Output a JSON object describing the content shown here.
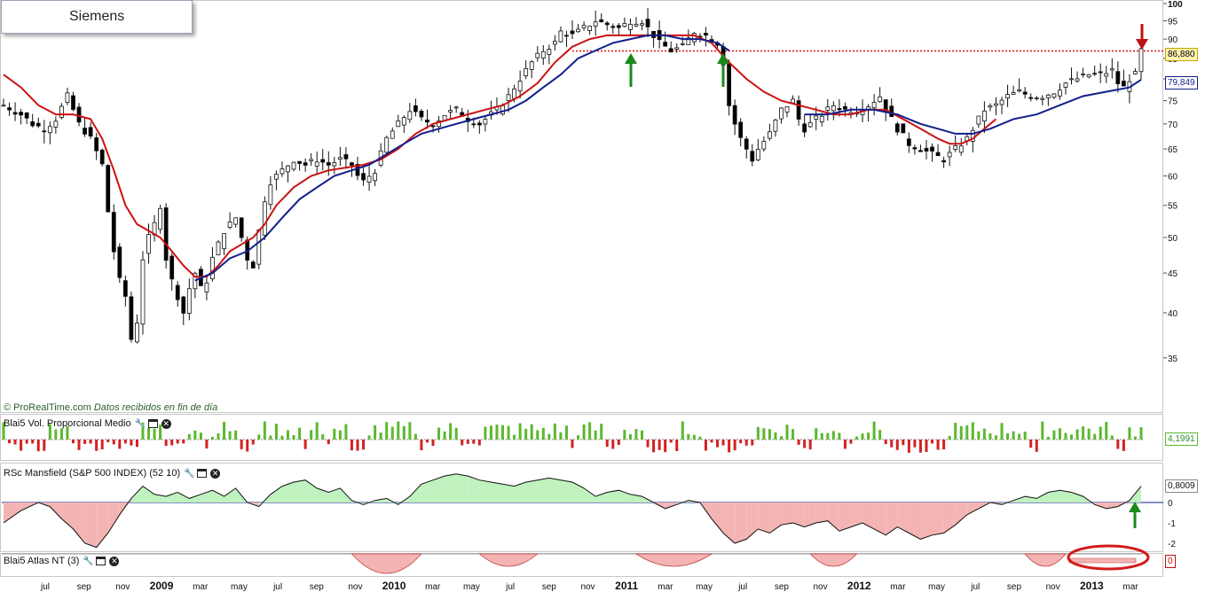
{
  "title": "Siemens",
  "credit": {
    "brand": "© ProRealTime.com",
    "note": "Datos recibidos en fin de día"
  },
  "colors": {
    "up": "#ffffff",
    "down": "#000000",
    "ma_short": "#cc1111",
    "ma_long": "#111e8c",
    "resistance": "#dd1111",
    "vol_up": "#5cb82e",
    "vol_down": "#d22222",
    "rsc_pos": "#bff2bf",
    "rsc_neg": "#f4b4b4",
    "arrow_up": "#1a8a1a",
    "arrow_down": "#c01010"
  },
  "indicators": {
    "vol_label": "Blai5 Vol. Proporcional Medio",
    "vol_value": "4,1991",
    "rsc_label": "RSc Mansfield (S&P 500 INDEX) (52 10)",
    "rsc_value": "0,8009",
    "rsc_ticks": [
      "0",
      "-1",
      "-2"
    ],
    "atlas_label": "Blai5 Atlas NT (3)",
    "atlas_value": "0",
    "icons": [
      "wrench-icon",
      "window-icon",
      "close-icon"
    ]
  },
  "price_tags": {
    "last": "86,880",
    "ma": "79,849"
  },
  "chart_data": {
    "type": "candlestick",
    "title": "Siemens",
    "y_axis": {
      "scale": "log",
      "ylim": [
        31,
        100
      ],
      "ticks": [
        35,
        40,
        45,
        50,
        55,
        60,
        65,
        70,
        75,
        80,
        85,
        90,
        95,
        100
      ]
    },
    "x_axis": {
      "labels": [
        "jul",
        "sep",
        "nov",
        "2009",
        "mar",
        "may",
        "jul",
        "sep",
        "nov",
        "2010",
        "mar",
        "may",
        "jul",
        "sep",
        "nov",
        "2011",
        "mar",
        "may",
        "jul",
        "sep",
        "nov",
        "2012",
        "mar",
        "may",
        "jul",
        "sep",
        "nov",
        "2013",
        "mar"
      ],
      "bold": [
        "2009",
        "2010",
        "2011",
        "2012",
        "2013"
      ]
    },
    "close_path": [
      [
        0,
        74
      ],
      [
        3,
        72
      ],
      [
        5,
        70
      ],
      [
        7,
        69
      ],
      [
        9,
        71
      ],
      [
        11,
        76
      ],
      [
        13,
        70
      ],
      [
        15,
        67
      ],
      [
        17,
        62
      ],
      [
        18,
        54
      ],
      [
        19,
        48
      ],
      [
        20,
        44
      ],
      [
        21,
        42
      ],
      [
        22,
        37
      ],
      [
        23,
        39
      ],
      [
        24,
        47
      ],
      [
        25,
        50
      ],
      [
        26,
        52
      ],
      [
        27,
        55
      ],
      [
        28,
        47
      ],
      [
        29,
        44
      ],
      [
        30,
        42
      ],
      [
        31,
        40
      ],
      [
        32,
        43
      ],
      [
        33,
        45
      ],
      [
        34,
        43
      ],
      [
        35,
        44
      ],
      [
        36,
        47
      ],
      [
        37,
        49
      ],
      [
        38,
        51
      ],
      [
        40,
        53
      ],
      [
        41,
        50
      ],
      [
        42,
        47
      ],
      [
        43,
        46
      ],
      [
        44,
        51
      ],
      [
        45,
        56
      ],
      [
        46,
        59
      ],
      [
        48,
        61
      ],
      [
        50,
        63
      ],
      [
        52,
        62
      ],
      [
        54,
        63
      ],
      [
        56,
        62
      ],
      [
        58,
        63
      ],
      [
        60,
        62
      ],
      [
        61,
        60
      ],
      [
        62,
        59
      ],
      [
        64,
        61
      ],
      [
        65,
        64
      ],
      [
        66,
        67
      ],
      [
        68,
        70
      ],
      [
        70,
        73
      ],
      [
        72,
        71
      ],
      [
        74,
        70
      ],
      [
        76,
        72
      ],
      [
        78,
        73
      ],
      [
        80,
        71
      ],
      [
        82,
        70
      ],
      [
        83,
        71
      ],
      [
        85,
        73
      ],
      [
        87,
        76
      ],
      [
        89,
        80
      ],
      [
        91,
        84
      ],
      [
        93,
        87
      ],
      [
        95,
        89
      ],
      [
        96,
        92
      ],
      [
        98,
        91
      ],
      [
        100,
        93
      ],
      [
        102,
        95
      ],
      [
        104,
        94
      ],
      [
        106,
        93
      ],
      [
        108,
        95
      ],
      [
        110,
        95
      ],
      [
        112,
        91
      ],
      [
        113,
        89
      ],
      [
        115,
        87
      ],
      [
        117,
        88
      ],
      [
        119,
        92
      ],
      [
        121,
        91
      ],
      [
        123,
        89
      ],
      [
        124,
        84
      ],
      [
        125,
        74
      ],
      [
        126,
        70
      ],
      [
        127,
        67
      ],
      [
        128,
        65
      ],
      [
        129,
        63
      ],
      [
        130,
        65
      ],
      [
        132,
        68
      ],
      [
        134,
        73
      ],
      [
        136,
        75
      ],
      [
        137,
        71
      ],
      [
        138,
        69
      ],
      [
        139,
        70
      ],
      [
        141,
        72
      ],
      [
        143,
        74
      ],
      [
        145,
        73
      ],
      [
        147,
        73
      ],
      [
        149,
        74
      ],
      [
        151,
        76
      ],
      [
        152,
        73
      ],
      [
        154,
        69
      ],
      [
        156,
        66
      ],
      [
        158,
        65
      ],
      [
        160,
        64
      ],
      [
        162,
        63
      ],
      [
        164,
        65
      ],
      [
        166,
        67
      ],
      [
        167,
        69
      ],
      [
        169,
        73
      ],
      [
        171,
        74
      ],
      [
        173,
        76
      ],
      [
        175,
        77
      ],
      [
        177,
        76
      ],
      [
        179,
        76
      ],
      [
        181,
        77
      ],
      [
        183,
        79
      ],
      [
        185,
        80
      ],
      [
        187,
        81
      ],
      [
        189,
        81
      ],
      [
        191,
        82
      ],
      [
        192,
        79
      ],
      [
        193,
        78
      ],
      [
        194,
        80
      ],
      [
        195,
        81
      ],
      [
        196,
        87
      ]
    ],
    "ma_short": [
      [
        0,
        81
      ],
      [
        3,
        78
      ],
      [
        6,
        74
      ],
      [
        9,
        72
      ],
      [
        12,
        72
      ],
      [
        15,
        71
      ],
      [
        17,
        67
      ],
      [
        19,
        61
      ],
      [
        21,
        55
      ],
      [
        23,
        52
      ],
      [
        25,
        51
      ],
      [
        27,
        50
      ],
      [
        29,
        48
      ],
      [
        31,
        46
      ],
      [
        33,
        44.5
      ],
      [
        35,
        44.5
      ],
      [
        37,
        46
      ],
      [
        39,
        48
      ],
      [
        41,
        49
      ],
      [
        43,
        50
      ],
      [
        45,
        52
      ],
      [
        47,
        55
      ],
      [
        50,
        58
      ],
      [
        53,
        60
      ],
      [
        56,
        61
      ],
      [
        59,
        61.5
      ],
      [
        62,
        62
      ],
      [
        65,
        63
      ],
      [
        68,
        65
      ],
      [
        71,
        68
      ],
      [
        74,
        70
      ],
      [
        77,
        71
      ],
      [
        80,
        72
      ],
      [
        83,
        73
      ],
      [
        86,
        74
      ],
      [
        89,
        76
      ],
      [
        92,
        79
      ],
      [
        95,
        84
      ],
      [
        98,
        88
      ],
      [
        101,
        90
      ],
      [
        104,
        91
      ],
      [
        107,
        91
      ],
      [
        110,
        91
      ],
      [
        113,
        91
      ],
      [
        116,
        91
      ],
      [
        119,
        91
      ],
      [
        122,
        89
      ],
      [
        125,
        84
      ],
      [
        128,
        80
      ],
      [
        131,
        77
      ],
      [
        134,
        75
      ],
      [
        137,
        74
      ],
      [
        140,
        73
      ],
      [
        143,
        72
      ],
      [
        146,
        72
      ],
      [
        149,
        73
      ],
      [
        152,
        73
      ],
      [
        155,
        71
      ],
      [
        158,
        69
      ],
      [
        161,
        67
      ],
      [
        163,
        66
      ],
      [
        165,
        66
      ],
      [
        167,
        67
      ],
      [
        169,
        69
      ],
      [
        171,
        71
      ]
    ],
    "ma_long": [
      [
        33,
        44
      ],
      [
        36,
        45
      ],
      [
        39,
        47
      ],
      [
        42,
        48
      ],
      [
        45,
        50
      ],
      [
        48,
        53
      ],
      [
        51,
        56
      ],
      [
        54,
        58
      ],
      [
        57,
        60
      ],
      [
        60,
        61
      ],
      [
        63,
        62
      ],
      [
        66,
        64
      ],
      [
        69,
        66
      ],
      [
        72,
        68
      ],
      [
        75,
        69
      ],
      [
        78,
        70
      ],
      [
        81,
        71
      ],
      [
        84,
        72
      ],
      [
        87,
        73
      ],
      [
        90,
        75
      ],
      [
        93,
        78
      ],
      [
        96,
        81
      ],
      [
        99,
        85
      ],
      [
        102,
        87
      ],
      [
        105,
        89
      ],
      [
        108,
        90
      ],
      [
        111,
        91
      ],
      [
        114,
        91
      ],
      [
        117,
        90
      ],
      [
        120,
        90
      ],
      [
        123,
        89
      ],
      [
        125,
        87
      ]
    ],
    "ma_long_late": [
      [
        138,
        72
      ],
      [
        142,
        72
      ],
      [
        146,
        73
      ],
      [
        150,
        73
      ],
      [
        154,
        72
      ],
      [
        158,
        70
      ],
      [
        161,
        69
      ],
      [
        164,
        68
      ],
      [
        167,
        68
      ],
      [
        170,
        69
      ],
      [
        174,
        71
      ],
      [
        178,
        72
      ],
      [
        182,
        74
      ],
      [
        186,
        76
      ],
      [
        190,
        77
      ],
      [
        194,
        78
      ],
      [
        196,
        79.8
      ]
    ],
    "resistance": 86.88,
    "rsc_mansfield": [
      [
        0,
        -1.0
      ],
      [
        3,
        -0.4
      ],
      [
        6,
        0.0
      ],
      [
        8,
        -0.2
      ],
      [
        10,
        -0.8
      ],
      [
        12,
        -1.3
      ],
      [
        14,
        -2.0
      ],
      [
        16,
        -2.2
      ],
      [
        18,
        -1.5
      ],
      [
        20,
        -0.6
      ],
      [
        22,
        0.2
      ],
      [
        24,
        0.8
      ],
      [
        26,
        0.4
      ],
      [
        28,
        0.3
      ],
      [
        30,
        0.5
      ],
      [
        32,
        0.2
      ],
      [
        34,
        0.4
      ],
      [
        36,
        0.6
      ],
      [
        38,
        0.3
      ],
      [
        40,
        0.7
      ],
      [
        42,
        0.0
      ],
      [
        44,
        -0.2
      ],
      [
        46,
        0.4
      ],
      [
        48,
        0.8
      ],
      [
        50,
        1.0
      ],
      [
        52,
        1.1
      ],
      [
        54,
        0.7
      ],
      [
        56,
        0.5
      ],
      [
        58,
        0.7
      ],
      [
        60,
        0.1
      ],
      [
        62,
        -0.1
      ],
      [
        64,
        0.1
      ],
      [
        66,
        0.2
      ],
      [
        68,
        -0.1
      ],
      [
        70,
        0.3
      ],
      [
        72,
        0.9
      ],
      [
        74,
        1.1
      ],
      [
        76,
        1.3
      ],
      [
        78,
        1.4
      ],
      [
        80,
        1.3
      ],
      [
        82,
        1.1
      ],
      [
        84,
        1.0
      ],
      [
        86,
        0.9
      ],
      [
        88,
        0.8
      ],
      [
        90,
        1.0
      ],
      [
        92,
        1.1
      ],
      [
        94,
        1.2
      ],
      [
        96,
        1.1
      ],
      [
        98,
        1.0
      ],
      [
        100,
        0.7
      ],
      [
        102,
        0.3
      ],
      [
        104,
        0.5
      ],
      [
        106,
        0.6
      ],
      [
        108,
        0.4
      ],
      [
        110,
        0.3
      ],
      [
        112,
        0.0
      ],
      [
        114,
        -0.3
      ],
      [
        116,
        -0.1
      ],
      [
        118,
        0.1
      ],
      [
        120,
        0.0
      ],
      [
        122,
        -0.8
      ],
      [
        124,
        -1.5
      ],
      [
        126,
        -2.0
      ],
      [
        128,
        -1.8
      ],
      [
        130,
        -1.3
      ],
      [
        132,
        -1.5
      ],
      [
        134,
        -1.1
      ],
      [
        136,
        -1.0
      ],
      [
        138,
        -1.2
      ],
      [
        140,
        -1.0
      ],
      [
        142,
        -0.9
      ],
      [
        144,
        -1.4
      ],
      [
        146,
        -1.2
      ],
      [
        148,
        -1.0
      ],
      [
        150,
        -1.3
      ],
      [
        152,
        -1.6
      ],
      [
        154,
        -1.2
      ],
      [
        156,
        -1.5
      ],
      [
        158,
        -1.8
      ],
      [
        160,
        -1.6
      ],
      [
        162,
        -1.5
      ],
      [
        164,
        -1.1
      ],
      [
        166,
        -0.6
      ],
      [
        168,
        -0.3
      ],
      [
        170,
        0.0
      ],
      [
        172,
        -0.1
      ],
      [
        174,
        0.1
      ],
      [
        176,
        0.3
      ],
      [
        178,
        0.2
      ],
      [
        180,
        0.5
      ],
      [
        182,
        0.6
      ],
      [
        184,
        0.5
      ],
      [
        186,
        0.3
      ],
      [
        188,
        -0.1
      ],
      [
        190,
        -0.3
      ],
      [
        192,
        -0.2
      ],
      [
        194,
        0.1
      ],
      [
        196,
        0.8
      ]
    ],
    "atlas_nt_dips": [
      [
        60,
        72
      ],
      [
        82,
        92
      ],
      [
        109,
        122
      ],
      [
        139,
        147
      ],
      [
        176,
        183
      ]
    ]
  }
}
